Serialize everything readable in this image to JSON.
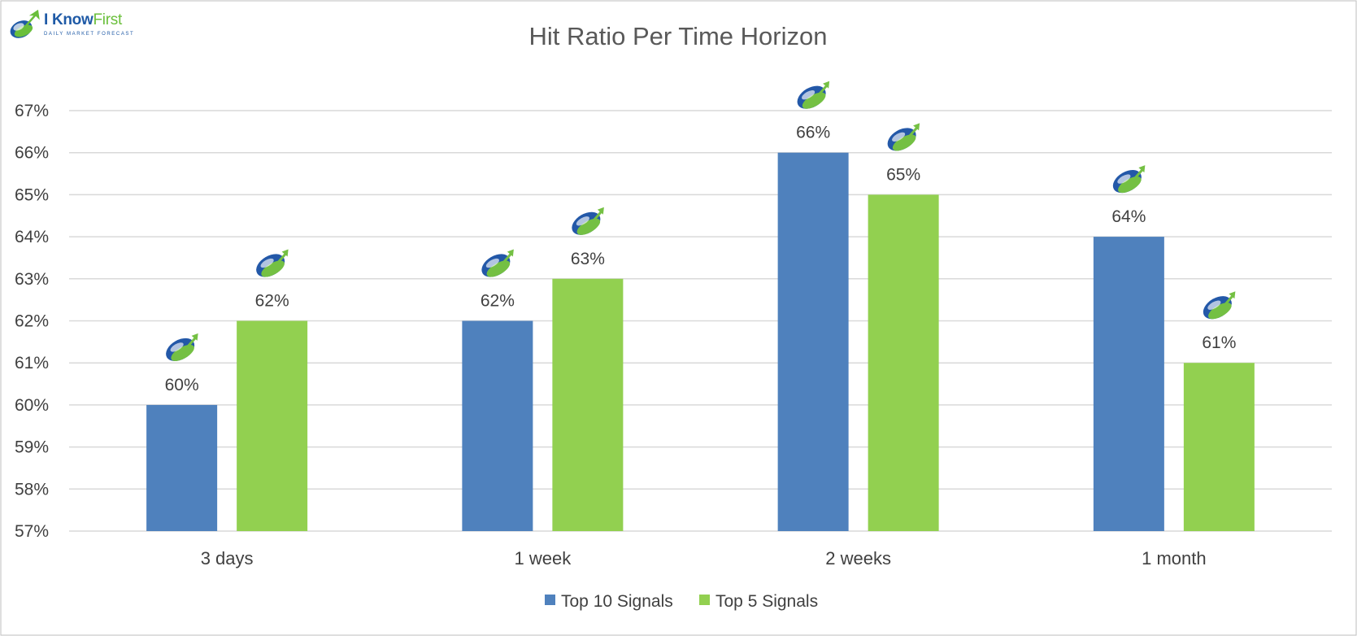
{
  "logo": {
    "text_a": "I Know",
    "text_b": "First",
    "tagline": "DAILY MARKET FORECAST"
  },
  "colors": {
    "series1": "#4f81bd",
    "series2": "#92d050",
    "grid": "#d9d9d9",
    "text": "#404040",
    "title": "#595959",
    "logo_blue": "#1f5aa6",
    "logo_green": "#6abf3b"
  },
  "icons": {
    "marker": "i-know-first-logo-icon"
  },
  "chart_data": {
    "type": "bar",
    "title": "Hit Ratio Per Time Horizon",
    "categories": [
      "3 days",
      "1 week",
      "2 weeks",
      "1 month"
    ],
    "series": [
      {
        "name": "Top 10 Signals",
        "values": [
          60,
          62,
          66,
          64
        ],
        "labels": [
          "60%",
          "62%",
          "66%",
          "64%"
        ]
      },
      {
        "name": "Top 5 Signals",
        "values": [
          62,
          63,
          65,
          61
        ],
        "labels": [
          "62%",
          "63%",
          "65%",
          "61%"
        ]
      }
    ],
    "ylim": [
      57,
      67
    ],
    "yticks": [
      57,
      58,
      59,
      60,
      61,
      62,
      63,
      64,
      65,
      66,
      67
    ],
    "ytick_labels": [
      "57%",
      "58%",
      "59%",
      "60%",
      "61%",
      "62%",
      "63%",
      "64%",
      "65%",
      "66%",
      "67%"
    ],
    "grid": true,
    "legend": "bottom-center"
  }
}
